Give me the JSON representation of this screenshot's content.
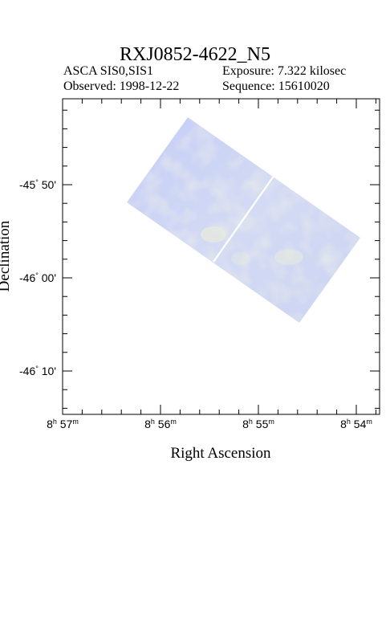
{
  "header": {
    "title": "RXJ0852-4622_N5",
    "instrument": "ASCA SIS0,SIS1",
    "exposure": "Exposure: 7.322 kilosec",
    "observed": "Observed: 1998-12-22",
    "sequence": "Sequence: 15610020"
  },
  "axes": {
    "xlabel": "Right Ascension",
    "ylabel": "Declination",
    "xticks": [
      {
        "h": "8",
        "m": "57"
      },
      {
        "h": "8",
        "m": "56"
      },
      {
        "h": "8",
        "m": "55"
      },
      {
        "h": "8",
        "m": "54"
      }
    ],
    "yticks": [
      {
        "deg": "-45",
        "min": "50'"
      },
      {
        "deg": "-46",
        "min": "00'"
      },
      {
        "deg": "-46",
        "min": "10'"
      }
    ]
  },
  "colors": {
    "image_fill": "#c9d2f6",
    "image_highlight": "#eef1d6",
    "frame": "#000000"
  }
}
